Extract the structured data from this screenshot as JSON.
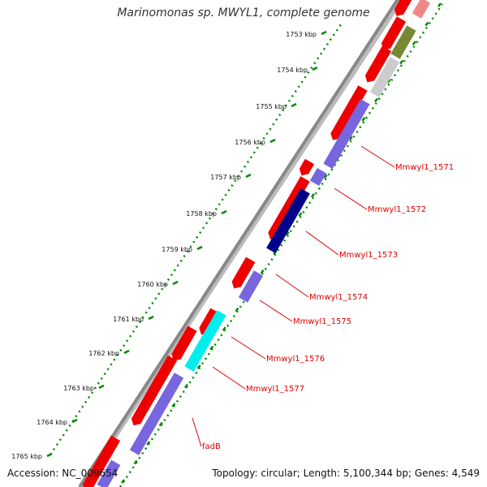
{
  "map": {
    "title": "Marinomonas sp. MWYL1, complete genome",
    "accession": "Accession: NC_009654",
    "summary": "Topology: circular; Length: 5,100,344 bp; Genes: 4,549"
  },
  "ticks": [
    "1753 kbp",
    "1754 kbp",
    "1755 kbp",
    "1756 kbp",
    "1757 kbp",
    "1758 kbp",
    "1759 kbp",
    "1760 kbp",
    "1761 kbp",
    "1762 kbp",
    "1763 kbp",
    "1764 kbp",
    "1765 kbp"
  ],
  "gene_labels": [
    "Mmwyl1_1571",
    "Mmwyl1_1572",
    "Mmwyl1_1573",
    "Mmwyl1_1574",
    "Mmwyl1_1575",
    "Mmwyl1_1576",
    "Mmwyl1_1577",
    "fadB"
  ],
  "colors": {
    "backbone": "#888888",
    "cds": "#ee0000",
    "track_purple": "#7766dd",
    "track_navy": "#000088",
    "track_cyan": "#00eeee",
    "track_olive": "#778833",
    "track_gray": "#cccccc",
    "track_pink": "#ee8888",
    "tick_green": "#008800",
    "label_red": "#dd0000"
  }
}
